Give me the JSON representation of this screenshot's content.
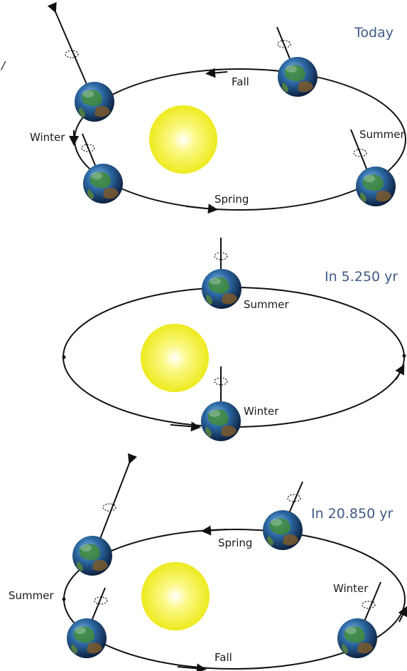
{
  "panels": [
    {
      "title": "Today",
      "labels": {
        "fall": "Fall",
        "winter": "Winter",
        "spring": "Spring",
        "summer": "Summer"
      }
    },
    {
      "title": "In 5.250 yr",
      "labels": {
        "summer": "Summer",
        "winter": "Winter"
      }
    },
    {
      "title": "In 20.850 yr",
      "labels": {
        "spring": "Spring",
        "summer": "Summer",
        "winter": "Winter",
        "fall": "Fall"
      }
    }
  ],
  "stray_mark": "/",
  "colors": {
    "title": "#3f5a86",
    "sun": "#f2ee2a",
    "ocean": "#2e6fa8",
    "land": "#3e8a3a",
    "orbit": "#111111"
  }
}
